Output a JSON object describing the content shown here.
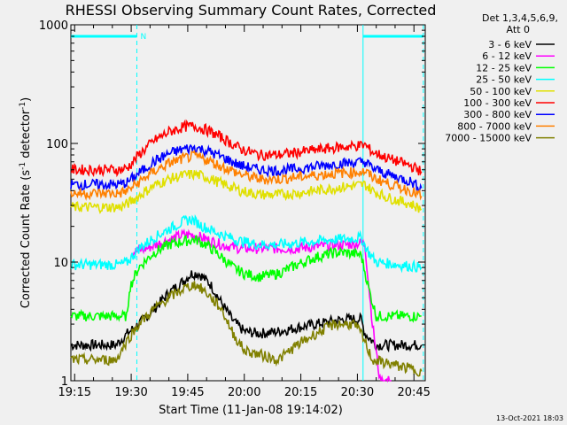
{
  "chart_data": {
    "type": "line",
    "title": "RHESSI Observing Summary Count Rates, Corrected",
    "xlabel": "Start Time (11-Jan-08 19:14:02)",
    "ylabel_main": "Corrected Count Rate (s",
    "ylabel_sup1": "-1",
    "ylabel_mid": " detector",
    "ylabel_sup2": "-1",
    "ylabel_end": ")",
    "y_scale": "log",
    "ylim": [
      1,
      1000
    ],
    "xlim_minutes": [
      0,
      94
    ],
    "x_ticks": [
      {
        "label": "19:15",
        "minute": 1
      },
      {
        "label": "19:30",
        "minute": 16
      },
      {
        "label": "19:45",
        "minute": 31
      },
      {
        "label": "20:00",
        "minute": 46
      },
      {
        "label": "20:15",
        "minute": 61
      },
      {
        "label": "20:30",
        "minute": 76
      },
      {
        "label": "20:45",
        "minute": 91
      }
    ],
    "y_ticks": [
      {
        "label": "1",
        "value": 1
      },
      {
        "label": "10",
        "value": 10
      },
      {
        "label": "100",
        "value": 100
      },
      {
        "label": "1000",
        "value": 1000
      }
    ],
    "legend_header": [
      "Det 1,3,4,5,6,9,",
      "Att 0"
    ],
    "legend_position": "right",
    "attenuator_marker": "N",
    "night_intervals_minutes": [
      [
        0,
        17.5
      ],
      [
        77.5,
        93.5
      ]
    ],
    "series": [
      {
        "name": "3 - 6 keV",
        "color": "#000000",
        "points": [
          [
            0,
            2
          ],
          [
            12,
            2
          ],
          [
            15,
            2.5
          ],
          [
            18,
            3
          ],
          [
            22,
            4
          ],
          [
            26,
            5.5
          ],
          [
            30,
            7
          ],
          [
            32,
            8
          ],
          [
            34,
            8
          ],
          [
            37,
            6.5
          ],
          [
            40,
            4.5
          ],
          [
            43,
            3.2
          ],
          [
            46,
            2.6
          ],
          [
            50,
            2.5
          ],
          [
            55,
            2.6
          ],
          [
            60,
            2.8
          ],
          [
            65,
            3
          ],
          [
            70,
            3.2
          ],
          [
            73,
            3.3
          ],
          [
            77,
            3.3
          ],
          [
            78,
            2.5
          ],
          [
            81,
            2
          ],
          [
            93,
            2
          ]
        ]
      },
      {
        "name": "6 - 12 keV",
        "color": "#ff00ff",
        "points": [
          [
            16,
            12
          ],
          [
            20,
            13
          ],
          [
            25,
            15
          ],
          [
            30,
            17
          ],
          [
            32,
            17
          ],
          [
            35,
            16
          ],
          [
            40,
            14
          ],
          [
            45,
            13
          ],
          [
            50,
            13
          ],
          [
            55,
            13
          ],
          [
            60,
            13
          ],
          [
            65,
            13.5
          ],
          [
            70,
            14
          ],
          [
            73,
            14
          ],
          [
            77,
            14.5
          ],
          [
            78,
            14
          ],
          [
            80,
            3
          ],
          [
            82,
            1
          ],
          [
            85,
            1
          ]
        ]
      },
      {
        "name": "12 - 25 keV",
        "color": "#00ff00",
        "points": [
          [
            0,
            3.5
          ],
          [
            12,
            3.5
          ],
          [
            15,
            3.5
          ],
          [
            15.5,
            6
          ],
          [
            18,
            9
          ],
          [
            22,
            12
          ],
          [
            26,
            14
          ],
          [
            30,
            15
          ],
          [
            33,
            15.5
          ],
          [
            36,
            14
          ],
          [
            40,
            11
          ],
          [
            43,
            9
          ],
          [
            46,
            8
          ],
          [
            50,
            7.5
          ],
          [
            55,
            8
          ],
          [
            60,
            9.5
          ],
          [
            65,
            11
          ],
          [
            70,
            12
          ],
          [
            73,
            12
          ],
          [
            77,
            11.5
          ],
          [
            79,
            6
          ],
          [
            81,
            3.5
          ],
          [
            93,
            3.5
          ]
        ]
      },
      {
        "name": "25 - 50 keV",
        "color": "#00ffff",
        "points": [
          [
            0,
            9.5
          ],
          [
            13,
            9.5
          ],
          [
            15,
            10
          ],
          [
            18,
            13
          ],
          [
            22,
            16
          ],
          [
            26,
            19
          ],
          [
            30,
            22
          ],
          [
            32,
            23
          ],
          [
            35,
            20
          ],
          [
            40,
            17
          ],
          [
            45,
            15
          ],
          [
            50,
            14
          ],
          [
            55,
            14
          ],
          [
            60,
            14.5
          ],
          [
            65,
            15
          ],
          [
            70,
            15.5
          ],
          [
            77,
            16
          ],
          [
            79,
            12
          ],
          [
            81,
            10
          ],
          [
            93,
            9
          ]
        ]
      },
      {
        "name": "50 - 100 keV",
        "color": "#e0e000",
        "points": [
          [
            0,
            29
          ],
          [
            13,
            29
          ],
          [
            15,
            31
          ],
          [
            18,
            36
          ],
          [
            22,
            44
          ],
          [
            26,
            50
          ],
          [
            30,
            54
          ],
          [
            33,
            55
          ],
          [
            36,
            52
          ],
          [
            40,
            46
          ],
          [
            45,
            40
          ],
          [
            50,
            37
          ],
          [
            55,
            37
          ],
          [
            60,
            38
          ],
          [
            65,
            40
          ],
          [
            70,
            42
          ],
          [
            75,
            44
          ],
          [
            78,
            45
          ],
          [
            80,
            40
          ],
          [
            84,
            35
          ],
          [
            90,
            31
          ],
          [
            93,
            28
          ]
        ]
      },
      {
        "name": "100 - 300 keV",
        "color": "#ff0000",
        "points": [
          [
            0,
            60
          ],
          [
            13,
            60
          ],
          [
            15,
            62
          ],
          [
            18,
            80
          ],
          [
            22,
            105
          ],
          [
            26,
            125
          ],
          [
            30,
            138
          ],
          [
            33,
            140
          ],
          [
            36,
            130
          ],
          [
            40,
            112
          ],
          [
            45,
            90
          ],
          [
            50,
            80
          ],
          [
            55,
            80
          ],
          [
            60,
            84
          ],
          [
            65,
            88
          ],
          [
            70,
            92
          ],
          [
            75,
            95
          ],
          [
            78,
            97
          ],
          [
            80,
            85
          ],
          [
            84,
            75
          ],
          [
            90,
            65
          ],
          [
            93,
            58
          ]
        ]
      },
      {
        "name": "300 - 800 keV",
        "color": "#0000ff",
        "points": [
          [
            0,
            45
          ],
          [
            13,
            45
          ],
          [
            15,
            47
          ],
          [
            18,
            56
          ],
          [
            22,
            70
          ],
          [
            26,
            82
          ],
          [
            30,
            90
          ],
          [
            33,
            92
          ],
          [
            36,
            87
          ],
          [
            40,
            77
          ],
          [
            45,
            65
          ],
          [
            50,
            60
          ],
          [
            55,
            59
          ],
          [
            60,
            61
          ],
          [
            65,
            64
          ],
          [
            70,
            67
          ],
          [
            75,
            69
          ],
          [
            78,
            70
          ],
          [
            80,
            62
          ],
          [
            84,
            55
          ],
          [
            90,
            48
          ],
          [
            93,
            42
          ]
        ]
      },
      {
        "name": "800 - 7000 keV",
        "color": "#ff8000",
        "points": [
          [
            0,
            38
          ],
          [
            13,
            38
          ],
          [
            15,
            40
          ],
          [
            18,
            47
          ],
          [
            22,
            58
          ],
          [
            26,
            68
          ],
          [
            30,
            75
          ],
          [
            33,
            78
          ],
          [
            36,
            73
          ],
          [
            40,
            64
          ],
          [
            45,
            55
          ],
          [
            50,
            50
          ],
          [
            55,
            50
          ],
          [
            60,
            52
          ],
          [
            65,
            54
          ],
          [
            70,
            56
          ],
          [
            75,
            57
          ],
          [
            78,
            58
          ],
          [
            80,
            52
          ],
          [
            84,
            46
          ],
          [
            90,
            40
          ],
          [
            93,
            36
          ]
        ]
      },
      {
        "name": "7000 - 15000 keV",
        "color": "#808000",
        "points": [
          [
            0,
            1.5
          ],
          [
            12,
            1.5
          ],
          [
            15,
            2.2
          ],
          [
            18,
            3
          ],
          [
            22,
            4
          ],
          [
            26,
            5
          ],
          [
            30,
            6
          ],
          [
            33,
            6.5
          ],
          [
            36,
            5.5
          ],
          [
            40,
            4
          ],
          [
            43,
            2.5
          ],
          [
            46,
            1.8
          ],
          [
            55,
            1.5
          ],
          [
            60,
            2
          ],
          [
            65,
            2.5
          ],
          [
            70,
            3
          ],
          [
            75,
            3
          ],
          [
            77,
            2.5
          ],
          [
            80,
            1.5
          ],
          [
            93,
            1.2
          ]
        ]
      }
    ]
  },
  "footer": {
    "date": "13-Oct-2021 18:03"
  }
}
